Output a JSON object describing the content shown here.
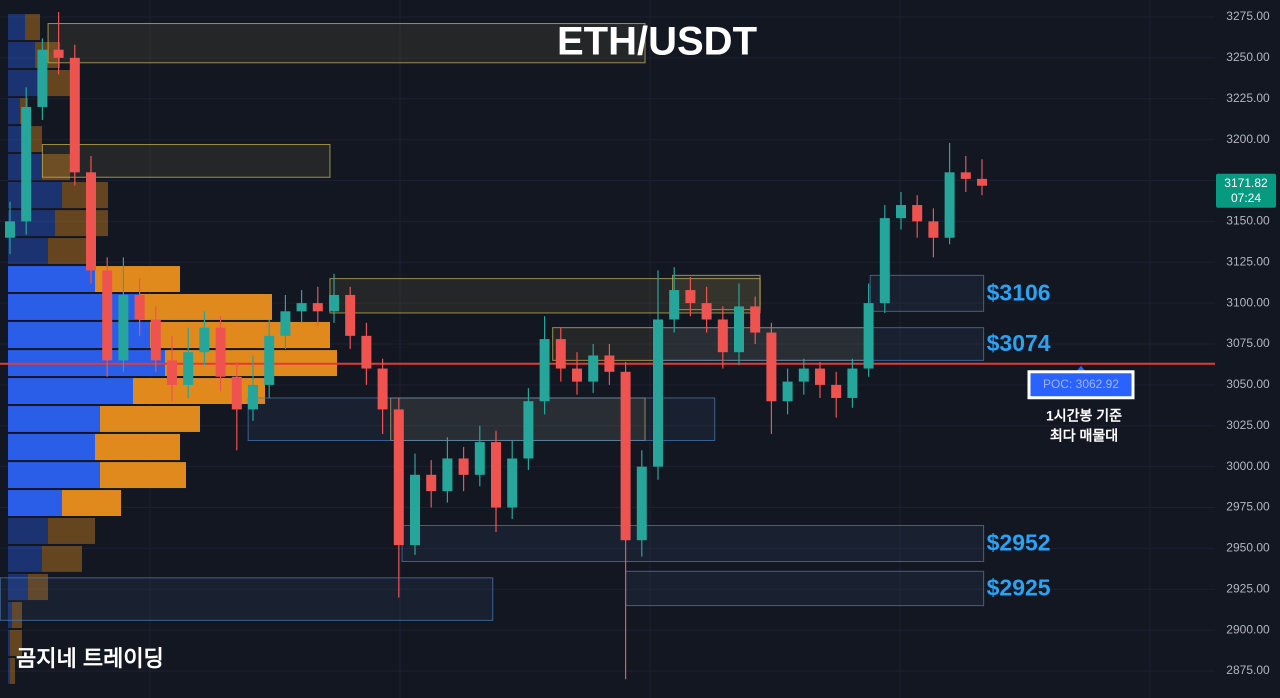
{
  "chart_data": {
    "type": "candlestick",
    "title": "ETH/USDT",
    "watermark": "곰지네 트레이딩",
    "ylim": [
      2858.5,
      3285.4
    ],
    "yticks": [
      {
        "value": 2875,
        "label": "2875.00"
      },
      {
        "value": 2900,
        "label": "2900.00"
      },
      {
        "value": 2925,
        "label": "2925.00"
      },
      {
        "value": 2950,
        "label": "2950.00"
      },
      {
        "value": 2975,
        "label": "2975.00"
      },
      {
        "value": 3000,
        "label": "3000.00"
      },
      {
        "value": 3025,
        "label": "3025.00"
      },
      {
        "value": 3050,
        "label": "3050.00"
      },
      {
        "value": 3075,
        "label": "3075.00"
      },
      {
        "value": 3100,
        "label": "3100.00"
      },
      {
        "value": 3125,
        "label": "3125.00"
      },
      {
        "value": 3150,
        "label": "3150.00"
      },
      {
        "value": 3175,
        "label": "3175.00"
      },
      {
        "value": 3200,
        "label": "3200.00"
      },
      {
        "value": 3225,
        "label": "3225.00"
      },
      {
        "value": 3250,
        "label": "3250.00"
      },
      {
        "value": 3275,
        "label": "3275.00"
      }
    ],
    "grid": true,
    "up_color": "#26a69a",
    "down_color": "#ef5350",
    "open": [
      3140,
      3150,
      3220,
      3255,
      3250,
      3180,
      3120,
      3065,
      3105,
      3090,
      3065,
      3050,
      3070,
      3085,
      3055,
      3035,
      3050,
      3080,
      3095,
      3100,
      3095,
      3105,
      3080,
      3060,
      3035,
      2952,
      2995,
      2985,
      3005,
      2995,
      3015,
      2975,
      3005,
      3040,
      3078,
      3060,
      3052,
      3068,
      3058,
      2955,
      3000,
      3090,
      3108,
      3100,
      3090,
      3070,
      3098,
      3082,
      3040,
      3052,
      3060,
      3050,
      3042,
      3060,
      3100,
      3152,
      3160,
      3150,
      3140,
      3180,
      3176
    ],
    "high": [
      3162,
      3232,
      3262,
      3278,
      3258,
      3190,
      3128,
      3128,
      3115,
      3098,
      3080,
      3085,
      3095,
      3092,
      3064,
      3068,
      3090,
      3105,
      3108,
      3110,
      3118,
      3110,
      3088,
      3066,
      3042,
      3008,
      3004,
      3018,
      3012,
      3025,
      3022,
      3016,
      3048,
      3092,
      3085,
      3070,
      3075,
      3075,
      3064,
      3010,
      3120,
      3122,
      3116,
      3110,
      3098,
      3112,
      3104,
      3088,
      3060,
      3066,
      3064,
      3058,
      3066,
      3112,
      3160,
      3168,
      3166,
      3158,
      3198,
      3190,
      3188
    ],
    "low": [
      3130,
      3142,
      3212,
      3240,
      3172,
      3112,
      3055,
      3058,
      3080,
      3058,
      3040,
      3042,
      3062,
      3046,
      3010,
      3028,
      3042,
      3072,
      3088,
      3086,
      3088,
      3072,
      3050,
      3020,
      2920,
      2946,
      2975,
      2978,
      2985,
      2988,
      2960,
      2968,
      2998,
      3032,
      3052,
      3044,
      3045,
      3050,
      2870,
      2945,
      2992,
      3082,
      3092,
      3082,
      3060,
      3062,
      3075,
      3020,
      3032,
      3044,
      3042,
      3030,
      3036,
      3055,
      3094,
      3145,
      3140,
      3128,
      3136,
      3168,
      3166
    ],
    "close": [
      3150,
      3220,
      3255,
      3250,
      3180,
      3120,
      3065,
      3105,
      3090,
      3065,
      3050,
      3070,
      3085,
      3055,
      3035,
      3050,
      3080,
      3095,
      3100,
      3095,
      3105,
      3080,
      3060,
      3035,
      2952,
      2995,
      2985,
      3005,
      2995,
      3015,
      2975,
      3005,
      3040,
      3078,
      3060,
      3052,
      3068,
      3058,
      2955,
      3000,
      3090,
      3108,
      3100,
      3090,
      3070,
      3098,
      3082,
      3040,
      3052,
      3060,
      3050,
      3042,
      3060,
      3100,
      3152,
      3160,
      3150,
      3140,
      3180,
      3176,
      3171.82
    ],
    "last_price": 3171.82,
    "countdown": "07:24",
    "last_price_color": "#089981",
    "poc": {
      "value": 3062.92,
      "label": "POC: 3062.92",
      "color": "#e53935",
      "label_color": "#2962ff",
      "note": [
        "1시간봉 기준",
        "최다 매물대"
      ]
    },
    "volume_profile": {
      "bins": [
        3277.4,
        3260.3,
        3243.2,
        3226.0,
        3208.9,
        3191.8,
        3174.7,
        3157.5,
        3140.4,
        3123.3,
        3106.2,
        3089.1,
        3071.9,
        3054.8,
        3037.7,
        3020.6,
        3003.4,
        2986.3,
        2969.2,
        2952.1,
        2935.0,
        2917.8,
        2900.7,
        2883.6,
        2866.5
      ],
      "buy": [
        17,
        27,
        34,
        12,
        22,
        34,
        54,
        47,
        40,
        87,
        132,
        142,
        157,
        125,
        92,
        87,
        92,
        54,
        40,
        34,
        20,
        4,
        2,
        2
      ],
      "sell": [
        15,
        25,
        28,
        8,
        12,
        28,
        46,
        53,
        40,
        85,
        132,
        180,
        172,
        132,
        100,
        85,
        86,
        59,
        47,
        40,
        20,
        10,
        12,
        5
      ],
      "buy_color": "#2a5ee8",
      "sell_color": "#e08a1e",
      "value_area": [
        2969.2,
        3123.3
      ]
    },
    "zones": [
      {
        "start": 2.35,
        "end": 39.2,
        "bottom": 3247,
        "top": 3271,
        "color": "#c9b458"
      },
      {
        "start": 2.0,
        "end": 19.75,
        "bottom": 3177,
        "top": 3197,
        "color": "#c9b458"
      },
      {
        "start": 19.75,
        "end": 46.3,
        "bottom": 3094,
        "top": 3115,
        "color": "#c9b458"
      },
      {
        "start": 33.5,
        "end": 53.1,
        "bottom": 3065,
        "top": 3085,
        "color": "#c9b458"
      },
      {
        "start": 23.5,
        "end": 39.2,
        "bottom": 3016,
        "top": 3042,
        "color": "#c9b458"
      },
      {
        "start": 40.9,
        "end": 46.3,
        "bottom": 3096,
        "top": 3117,
        "color": "#c9b458"
      },
      {
        "start": 53.1,
        "end": 60.1,
        "bottom": 3095,
        "top": 3117,
        "color": "#4a7ab0",
        "label": "$3106"
      },
      {
        "start": 39.8,
        "end": 60.1,
        "bottom": 3065,
        "top": 3085,
        "color": "#4a7ab0",
        "label": "$3074"
      },
      {
        "start": 14.7,
        "end": 43.5,
        "bottom": 3016,
        "top": 3042,
        "color": "#4a7ab0"
      },
      {
        "start": 24.2,
        "end": 60.1,
        "bottom": 2942,
        "top": 2964,
        "color": "#4a7ab0",
        "label": "$2952"
      },
      {
        "start": 38.0,
        "end": 60.1,
        "bottom": 2915,
        "top": 2936,
        "color": "#4a7ab0",
        "label": "$2925"
      },
      {
        "start": -0.6,
        "end": 29.8,
        "bottom": 2906,
        "top": 2932,
        "color": "#4a7ab0"
      }
    ],
    "zone_label_color": "#29a3f5"
  }
}
